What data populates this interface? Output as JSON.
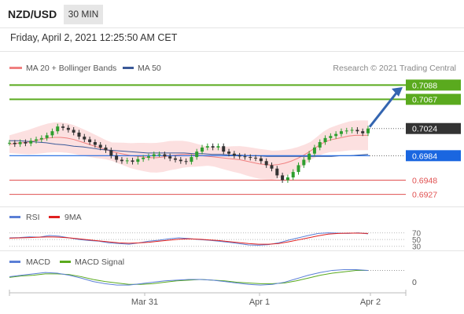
{
  "header": {
    "pair": "NZD/USD",
    "timeframe": "30 MIN",
    "datetime": "Friday, April 2, 2021 12:25:50 AM CET"
  },
  "colors": {
    "up": "#2e9e2e",
    "down": "#333333",
    "ma20": "#f08080",
    "bands": "#fbd5d5",
    "ma50": "#3b5998",
    "target": "#5aaa1e",
    "support": "#1a66e0",
    "stop": "#e05050",
    "current": "#333333",
    "arrow": "#3465b0",
    "rsi": "#5b7fd6",
    "rsi_ma": "#e02020",
    "macd": "#5b7fd6",
    "macd_signal": "#5aaa1e"
  },
  "legend": {
    "ma20": "MA 20 + Bollinger Bands",
    "ma50": "MA 50",
    "source": "Research © 2021 Trading Central"
  },
  "rsi_panel": {
    "legend_rsi": "RSI",
    "legend_ma": "9MA",
    "levels": [
      "70",
      "50",
      "30"
    ]
  },
  "macd_panel": {
    "legend_macd": "MACD",
    "legend_signal": "MACD Signal",
    "zero_label": "0"
  },
  "chart_data": {
    "type": "line",
    "title": "NZD/USD 30 MIN",
    "x_labels": [
      "Mar 31",
      "Apr 1",
      "Apr 2"
    ],
    "ylim": [
      0.6915,
      0.71
    ],
    "levels": [
      {
        "value": 0.7088,
        "label": "0.7088",
        "kind": "target"
      },
      {
        "value": 0.7067,
        "label": "0.7067",
        "kind": "target"
      },
      {
        "value": 0.7024,
        "label": "0.7024",
        "kind": "current"
      },
      {
        "value": 0.6984,
        "label": "0.6984",
        "kind": "support"
      },
      {
        "value": 0.6948,
        "label": "0.6948",
        "kind": "stop"
      },
      {
        "value": 0.6927,
        "label": "0.6927",
        "kind": "stop"
      }
    ],
    "price": [
      0.7003,
      0.7001,
      0.7004,
      0.7002,
      0.7006,
      0.7008,
      0.701,
      0.7014,
      0.702,
      0.7027,
      0.7025,
      0.7022,
      0.7018,
      0.7012,
      0.7008,
      0.7004,
      0.7,
      0.6996,
      0.6992,
      0.6984,
      0.6978,
      0.6976,
      0.6977,
      0.6975,
      0.6979,
      0.6981,
      0.6983,
      0.6986,
      0.6986,
      0.6983,
      0.698,
      0.6978,
      0.6976,
      0.6975,
      0.6982,
      0.699,
      0.6996,
      0.6998,
      0.6996,
      0.6998,
      0.699,
      0.6987,
      0.6984,
      0.6983,
      0.6982,
      0.6981,
      0.698,
      0.6976,
      0.697,
      0.6965,
      0.6955,
      0.6948,
      0.6952,
      0.696,
      0.697,
      0.6978,
      0.6987,
      0.6996,
      0.7004,
      0.701,
      0.7013,
      0.7016,
      0.702,
      0.7021,
      0.7022,
      0.702,
      0.7017,
      0.7024
    ],
    "ma20": [
      0.7001,
      0.7002,
      0.7003,
      0.7004,
      0.7006,
      0.7008,
      0.701,
      0.7011,
      0.7011,
      0.701,
      0.7008,
      0.7005,
      0.7002,
      0.6999,
      0.6996,
      0.6993,
      0.699,
      0.6988,
      0.6986,
      0.6984,
      0.6983,
      0.6982,
      0.6981,
      0.6981,
      0.6982,
      0.6984,
      0.6985,
      0.6986,
      0.6986,
      0.6985,
      0.6984,
      0.6983,
      0.6982,
      0.6981,
      0.698,
      0.6979,
      0.6978,
      0.6976,
      0.6974,
      0.6972,
      0.6971,
      0.697,
      0.6971,
      0.6973,
      0.6976,
      0.698,
      0.6985,
      0.6991,
      0.6997,
      0.7003,
      0.7007,
      0.7009,
      0.7011,
      0.7013,
      0.7014,
      0.7014,
      0.7014
    ],
    "ma50": [
      0.7006,
      0.7006,
      0.7005,
      0.7004,
      0.7003,
      0.7001,
      0.7,
      0.6998,
      0.6997,
      0.6995,
      0.6993,
      0.6992,
      0.6991,
      0.699,
      0.6989,
      0.6988,
      0.6988,
      0.6988,
      0.6988,
      0.6988,
      0.6987,
      0.6987,
      0.6986,
      0.6986,
      0.6985,
      0.6985,
      0.6984,
      0.6984,
      0.6983,
      0.6983,
      0.6983,
      0.6983,
      0.6983,
      0.6983,
      0.6983,
      0.6983,
      0.6984,
      0.6984,
      0.6985,
      0.6986
    ],
    "rsi": [
      55,
      56,
      58,
      57,
      62,
      60,
      55,
      50,
      47,
      45,
      40,
      38,
      36,
      40,
      45,
      48,
      52,
      55,
      53,
      50,
      48,
      45,
      42,
      38,
      34,
      33,
      35,
      40,
      48,
      55,
      62,
      68,
      70,
      69,
      68,
      70,
      67
    ],
    "rsi_ma": [
      54,
      55,
      56,
      57,
      58,
      57,
      55,
      52,
      49,
      46,
      43,
      40,
      39,
      40,
      42,
      45,
      48,
      51,
      52,
      51,
      49,
      47,
      44,
      41,
      38,
      36,
      36,
      38,
      43,
      49,
      55,
      61,
      66,
      68,
      69,
      69,
      68
    ],
    "macd": [
      0.0004,
      0.0006,
      0.0008,
      0.001,
      0.0009,
      0.0006,
      0.0002,
      -0.0003,
      -0.0006,
      -0.0008,
      -0.0008,
      -0.0006,
      -0.0004,
      -0.0002,
      -0.0001,
      0.0,
      0.0,
      -0.0001,
      -0.0003,
      -0.0005,
      -0.0007,
      -0.0008,
      -0.0007,
      -0.0004,
      0.0001,
      0.0006,
      0.001,
      0.0013,
      0.0014,
      0.0014,
      0.0013
    ],
    "macd_signal": [
      0.0003,
      0.0005,
      0.0006,
      0.0008,
      0.0008,
      0.0007,
      0.0004,
      0.0,
      -0.0003,
      -0.0005,
      -0.0007,
      -0.0007,
      -0.0006,
      -0.0004,
      -0.0002,
      -0.0001,
      0.0,
      -0.0001,
      -0.0002,
      -0.0004,
      -0.0005,
      -0.0006,
      -0.0006,
      -0.0005,
      -0.0002,
      0.0002,
      0.0006,
      0.0009,
      0.0011,
      0.0013,
      0.0013
    ]
  }
}
